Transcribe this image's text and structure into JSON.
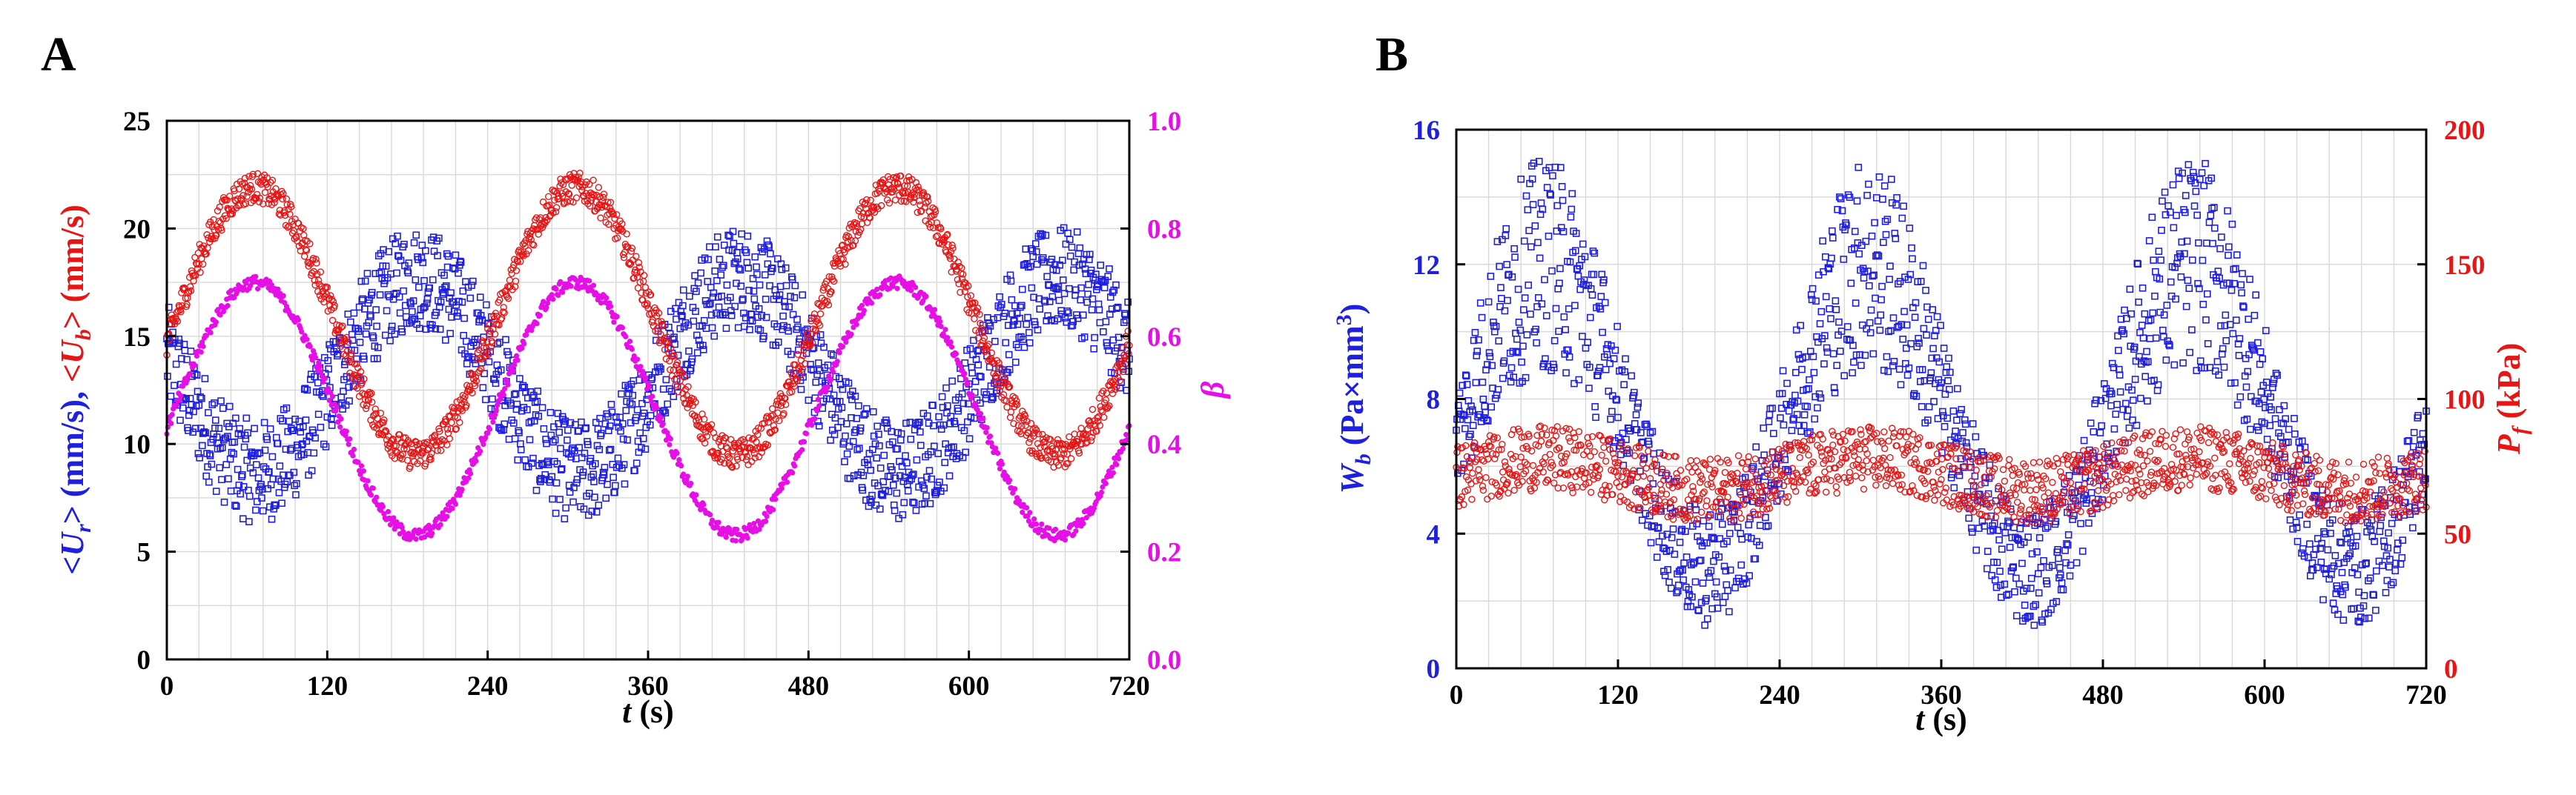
{
  "chart_data": [
    {
      "panel": "A",
      "type": "scatter",
      "xlabel_var": "t",
      "xlabel_unit": " (s)",
      "x_ticks": [
        "0",
        "120",
        "240",
        "360",
        "480",
        "600",
        "720"
      ],
      "xlim": [
        0,
        720
      ],
      "ylim_left": [
        0,
        25
      ],
      "y_ticks_left": [
        "0",
        "5",
        "10",
        "15",
        "20",
        "25"
      ],
      "ylim_right": [
        0,
        1.0
      ],
      "y_ticks_right": [
        "0.0",
        "0.2",
        "0.4",
        "0.6",
        "0.8",
        "1.0"
      ],
      "ylabel_left": {
        "blue_var": "<U",
        "blue_sub": "r",
        "blue_rest": "> (mm/s),",
        "red_var": "<U",
        "red_sub": "b",
        "red_rest": "> (mm/s)"
      },
      "ylabel_right": "β",
      "period_s": 240,
      "series": [
        {
          "name": "<Ur>",
          "axis": "left",
          "color": "#1f1fe0",
          "marker": "square",
          "mean": 13.2,
          "amplitude": 4.5,
          "phase_peak_s": 188,
          "band": 2.4
        },
        {
          "name": "<Ub>",
          "axis": "left",
          "color": "#e81515",
          "marker": "circle",
          "mean": 15.7,
          "amplitude": 6.2,
          "phase_peak_s": 66,
          "band": 0.7
        },
        {
          "name": "β",
          "axis": "right",
          "color": "#e60fe6",
          "marker": "dot",
          "mean": 0.465,
          "amplitude": 0.235,
          "phase_peak_s": 66,
          "band": 0.012
        }
      ]
    },
    {
      "panel": "B",
      "type": "scatter",
      "xlabel_var": "t",
      "xlabel_unit": " (s)",
      "x_ticks": [
        "0",
        "120",
        "240",
        "360",
        "480",
        "600",
        "720"
      ],
      "xlim": [
        0,
        720
      ],
      "ylim_left": [
        0,
        16
      ],
      "y_ticks_left": [
        "0",
        "4",
        "8",
        "12",
        "16"
      ],
      "ylim_right": [
        0,
        200
      ],
      "y_ticks_right": [
        "0",
        "50",
        "100",
        "150",
        "200"
      ],
      "ylabel_left": {
        "var": "W",
        "sub": "b",
        "rest": " (Pa×mm",
        "sup": "3",
        "close": ")"
      },
      "ylabel_right": {
        "var": "P",
        "sub": "f",
        "rest": " (kPa)"
      },
      "period_s": 240,
      "series": [
        {
          "name": "Wb",
          "axis": "left",
          "color": "#1f1fe0",
          "marker": "square",
          "mean": 7.5,
          "amplitude": 4.5,
          "phase_peak_s": 66,
          "band": 3.2
        },
        {
          "name": "Pf",
          "axis": "right",
          "color": "#e81515",
          "marker": "circle",
          "mean": 72,
          "amplitude": 6,
          "phase_peak_s": 66,
          "band": 12
        }
      ]
    }
  ],
  "colors": {
    "blue": "#1f1fe0",
    "red": "#e81515",
    "magenta": "#e60fe6"
  }
}
